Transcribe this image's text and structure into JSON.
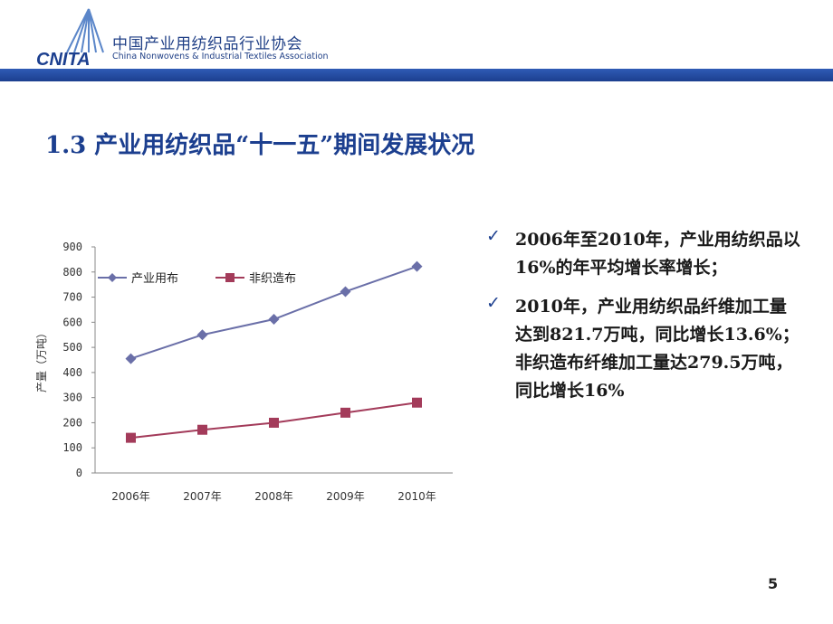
{
  "header": {
    "logo_text": "CNITA",
    "org_name_cn": "中国产业用纺织品行业协会",
    "org_name_en": "China Nonwovens & Industrial Textiles Association",
    "bar_color": "#1c3f8f"
  },
  "slide": {
    "title": "1.3  产业用纺织品“十一五”期间发展状况",
    "page_number": "5"
  },
  "bullets": [
    {
      "icon": "check-icon",
      "text": "2006年至2010年，产业用纺织品以16%的年平均增长率增长；"
    },
    {
      "icon": "check-icon",
      "text": "2010年，产业用纺织品纤维加工量达到821.7万吨，同比增长13.6%；非织造布纤维加工量达279.5万吨，同比增长16%"
    }
  ],
  "chart_data": {
    "type": "line",
    "categories": [
      "2006年",
      "2007年",
      "2008年",
      "2009年",
      "2010年"
    ],
    "series": [
      {
        "name": "产业用布",
        "values": [
          455,
          550,
          612,
          722,
          822
        ],
        "color": "#6a6fa8",
        "marker": "diamond"
      },
      {
        "name": "非织造布",
        "values": [
          140,
          172,
          200,
          240,
          280
        ],
        "color": "#a33b5a",
        "marker": "square"
      }
    ],
    "ylabel": "产量（万吨）",
    "ylim": [
      0,
      900
    ],
    "yticks": [
      0,
      100,
      200,
      300,
      400,
      500,
      600,
      700,
      800,
      900
    ],
    "grid": false,
    "legend": "top-left"
  }
}
